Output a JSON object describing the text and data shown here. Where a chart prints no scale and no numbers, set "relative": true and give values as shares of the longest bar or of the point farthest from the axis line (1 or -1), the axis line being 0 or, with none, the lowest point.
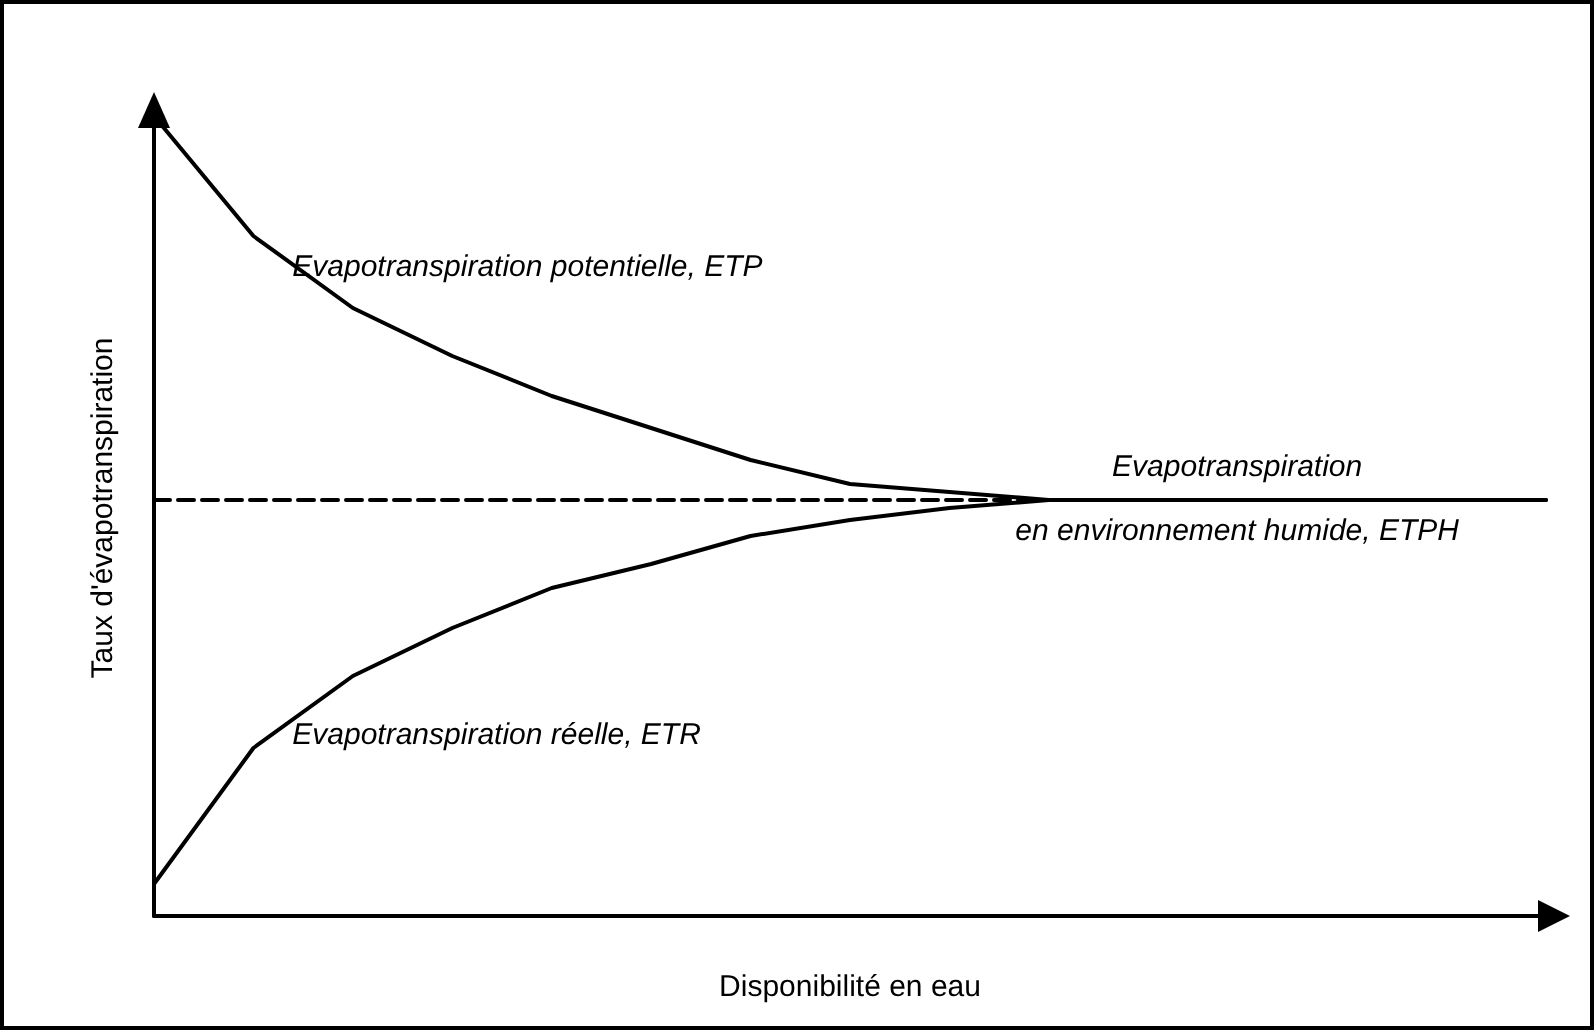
{
  "chart_data": {
    "type": "line",
    "relative": true,
    "xlabel": "Disponibilité en eau",
    "ylabel": "Taux d'évapotranspiration",
    "categories": [
      null,
      null,
      null,
      null,
      null,
      null,
      null,
      null,
      null,
      null,
      null,
      null,
      null,
      null,
      null
    ],
    "series": [
      {
        "name": "Evapotranspiration potentielle, ETP",
        "color": "#000000",
        "values": [
          1.0,
          0.85,
          0.76,
          0.7,
          0.65,
          0.61,
          0.57,
          0.54,
          0.53,
          0.52,
          0.52,
          0.52,
          0.52,
          0.52,
          0.52
        ]
      },
      {
        "name": "Evapotranspiration réelle, ETR",
        "color": "#000000",
        "values": [
          0.04,
          0.21,
          0.3,
          0.36,
          0.41,
          0.44,
          0.475,
          0.495,
          0.51,
          0.52,
          0.52,
          0.52,
          0.52,
          0.52,
          0.52
        ]
      },
      {
        "name": "Evapotranspiration\nen environnement humide, ETPH",
        "color": "#000000",
        "line_style": "dashed",
        "values": [
          0.52,
          0.52,
          0.52,
          0.52,
          0.52,
          0.52,
          0.52,
          0.52,
          0.52,
          0.52,
          null,
          null,
          null,
          null,
          null
        ]
      }
    ],
    "grid": false,
    "legend": false,
    "marker": "none",
    "line_style": "solid"
  }
}
